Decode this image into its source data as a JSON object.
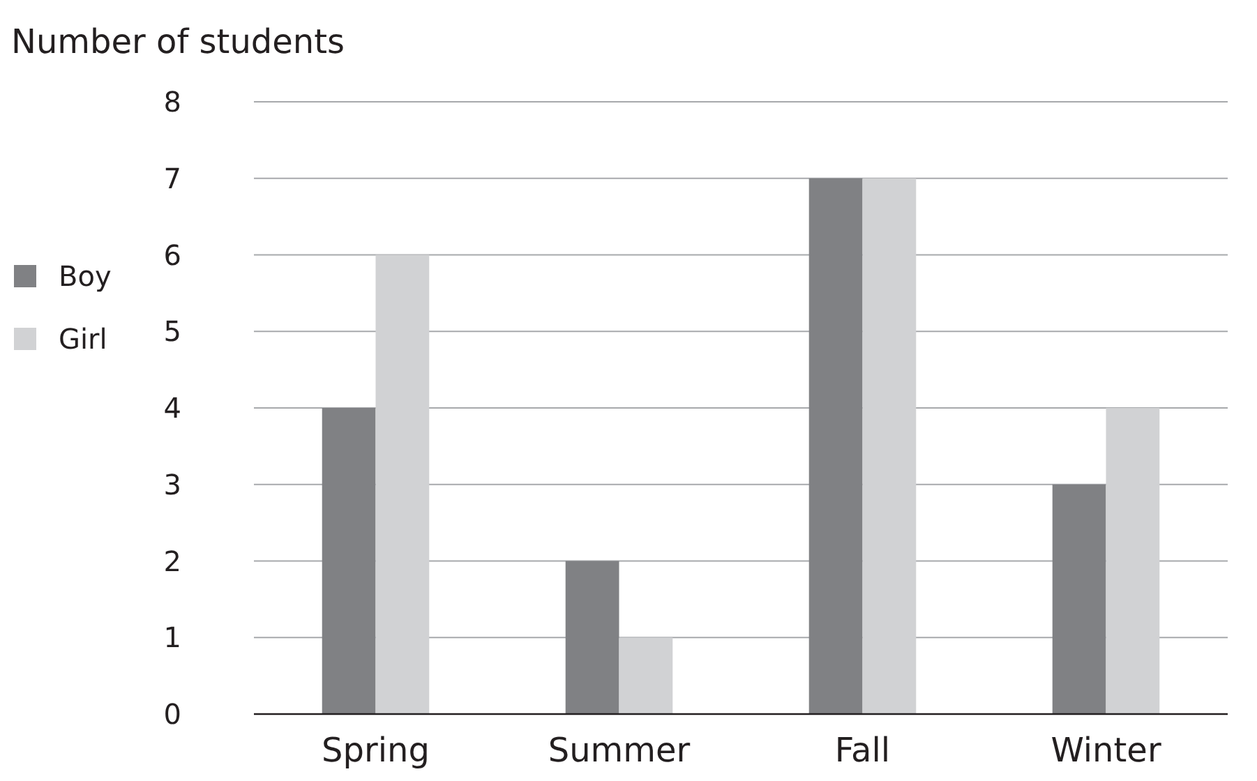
{
  "chart_data": {
    "type": "bar",
    "ylabel": "Number of students",
    "categories": [
      "Spring",
      "Summer",
      "Fall",
      "Winter"
    ],
    "series": [
      {
        "name": "Boy",
        "color": "#808184",
        "values": [
          4,
          2,
          7,
          3
        ]
      },
      {
        "name": "Girl",
        "color": "#d1d2d4",
        "values": [
          6,
          1,
          7,
          4
        ]
      }
    ],
    "ylim": [
      0,
      8
    ],
    "yticks": [
      0,
      1,
      2,
      3,
      4,
      5,
      6,
      7,
      8
    ],
    "grid": "y",
    "legend": "left"
  }
}
